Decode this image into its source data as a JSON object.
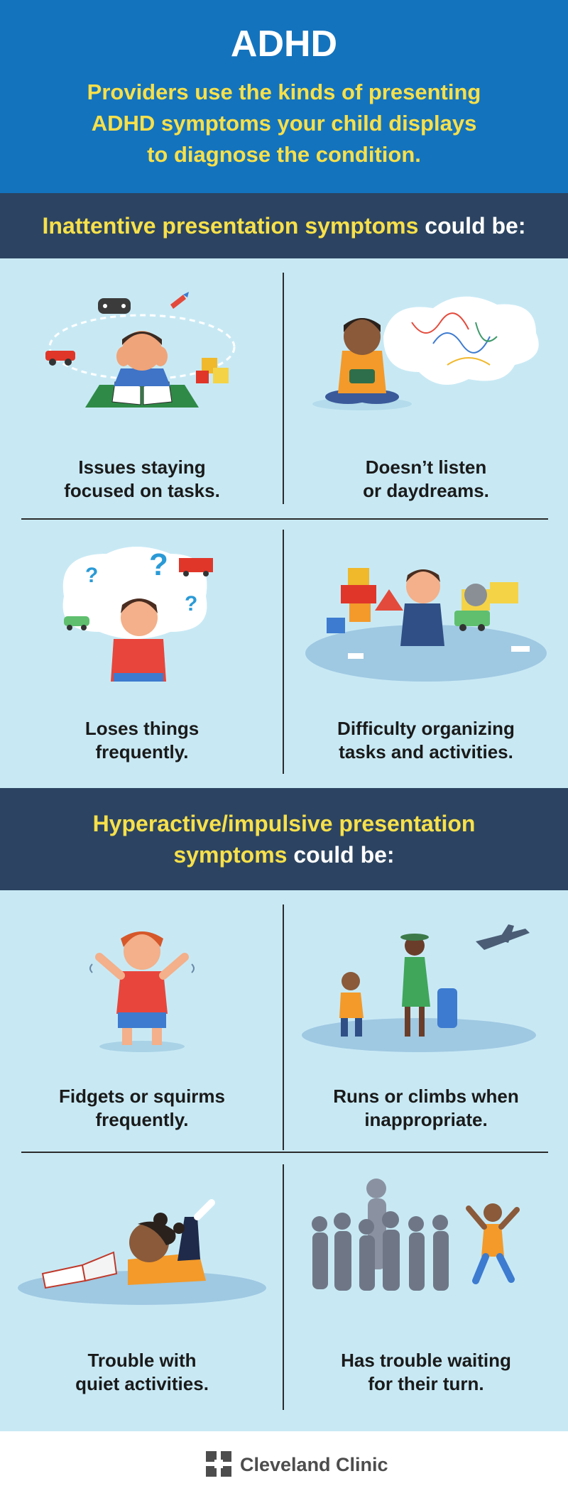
{
  "header": {
    "title": "ADHD",
    "subtitle_line1": "Providers use the kinds of presenting",
    "subtitle_line2": "ADHD symptoms your child displays",
    "subtitle_line3": "to diagnose the condition."
  },
  "inattentive": {
    "heading_highlight": "Inattentive presentation symptoms",
    "heading_rest": "could be:",
    "items": [
      {
        "line1": "Issues staying",
        "line2": "focused on tasks.",
        "icon": "distracted-child-reading-icon"
      },
      {
        "line1": "Doesn’t listen",
        "line2": "or daydreams.",
        "icon": "daydreaming-child-icon"
      },
      {
        "line1": "Loses things",
        "line2": "frequently.",
        "icon": "confused-child-icon"
      },
      {
        "line1": "Difficulty organizing",
        "line2": "tasks and activities.",
        "icon": "messy-toys-child-icon"
      }
    ]
  },
  "hyperactive": {
    "heading_highlight_1": "Hyperactive/impulsive presentation",
    "heading_highlight_2": "symptoms",
    "heading_rest": "could be:",
    "items": [
      {
        "line1": "Fidgets or squirms",
        "line2": "frequently.",
        "icon": "fidgeting-child-icon"
      },
      {
        "line1": "Runs or climbs when",
        "line2": "inappropriate.",
        "icon": "running-child-airport-icon"
      },
      {
        "line1": "Trouble with",
        "line2": "quiet activities.",
        "icon": "restless-reader-icon"
      },
      {
        "line1": "Has trouble waiting",
        "line2": "for their turn.",
        "icon": "child-skipping-line-icon"
      }
    ]
  },
  "footer": {
    "logo_text": "Cleveland Clinic"
  },
  "colors": {
    "header_blue": "#1473bd",
    "band_navy": "#2c4461",
    "highlight_yellow": "#f7e04a",
    "panel_light_blue": "#c8e9f4"
  }
}
